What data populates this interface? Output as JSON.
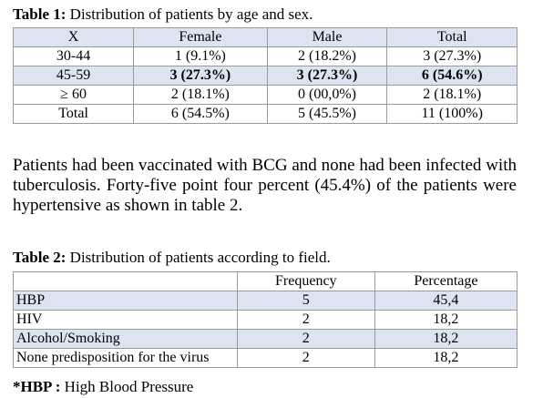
{
  "table1": {
    "caption_label": "Table 1:",
    "caption_text": " Distribution of patients by age and sex.",
    "headers": [
      "X",
      "Female",
      "Male",
      "Total"
    ],
    "rows": [
      [
        "30-44",
        "1 (9.1%)",
        "2 (18.2%)",
        "3 (27.3%)"
      ],
      [
        "45-59",
        "3 (27.3%)",
        "3 (27.3%)",
        "6 (54.6%)"
      ],
      [
        "≥ 60",
        "2 (18.1%)",
        "0 (00,0%)",
        "2 (18.1%)"
      ],
      [
        "Total",
        "6 (54.5%)",
        "5 (45.5%)",
        "11 (100%)"
      ]
    ]
  },
  "paragraph": "Patients had been vaccinated with BCG and none had been infected with tuberculosis. Forty-five point four percent (45.4%) of the patients were hypertensive as shown in table 2.",
  "table2": {
    "caption_label": "Table 2:",
    "caption_text": " Distribution of patients according to field.",
    "headers": [
      "",
      "Frequency",
      "Percentage"
    ],
    "rows": [
      [
        "HBP",
        "5",
        "45,4"
      ],
      [
        "HIV",
        "2",
        "18,2"
      ],
      [
        "Alcohol/Smoking",
        "2",
        "18,2"
      ],
      [
        "None predisposition for the virus",
        "2",
        "18,2"
      ]
    ]
  },
  "footnote": {
    "label": "*HBP :",
    "text": " High Blood Pressure"
  }
}
